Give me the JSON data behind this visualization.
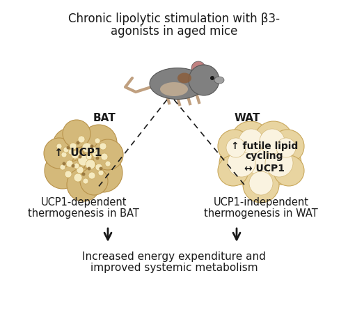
{
  "title_line1": "Chronic lipolytic stimulation with β3-",
  "title_line2": "agonists in aged mice",
  "bat_label": "BAT",
  "wat_label": "WAT",
  "bat_text_line1": "UCP1-dependent",
  "bat_text_line2": "thermogenesis in BAT",
  "wat_text_line1": "UCP1-independent",
  "wat_text_line2": "thermogenesis in WAT",
  "bottom_text_line1": "Increased energy expenditure and",
  "bottom_text_line2": "improved systemic metabolism",
  "ucp1_bat": "↑  UCP1",
  "ucp1_wat": "↔ UCP1",
  "futile_cycling_line1": "↑ futile lipid",
  "futile_cycling_line2": "cycling",
  "bat_blob_color": "#D4B97A",
  "bat_blob_inner_color": "#E8D4A0",
  "bat_small_circle_color": "#C9A85C",
  "wat_blob_color": "#E8D4A0",
  "wat_blob_inner_color": "#F5ECD0",
  "background_color": "#FFFFFF",
  "arrow_color": "#1A1A1A",
  "text_color": "#1A1A1A",
  "mouse_body_color": "#808080",
  "mouse_ear_color": "#C08080",
  "mouse_belly_color": "#D4B897",
  "dashed_line_color": "#1A1A1A"
}
